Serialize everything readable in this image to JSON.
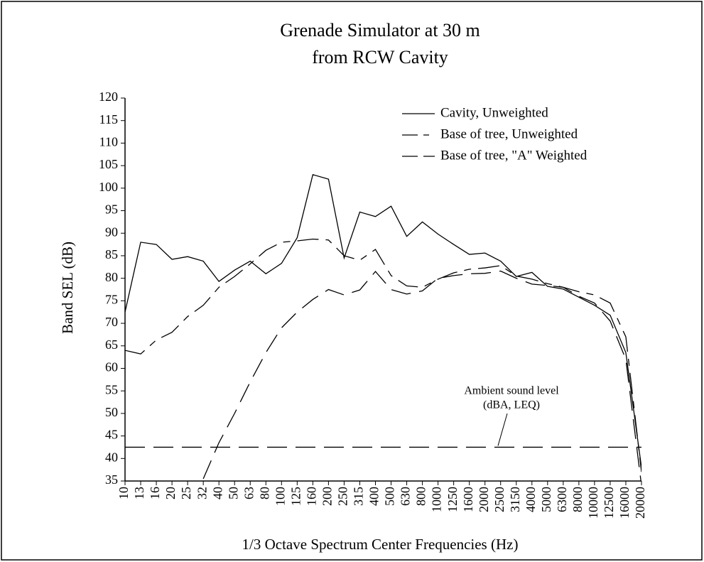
{
  "chart_data": {
    "type": "line",
    "title": [
      "Grenade Simulator at 30 m",
      "from RCW Cavity"
    ],
    "x_label": "1/3 Octave Spectrum Center Frequencies (Hz)",
    "y_label": "Band SEL (dB)",
    "categories": [
      "10",
      "13",
      "16",
      "20",
      "25",
      "32",
      "40",
      "50",
      "63",
      "80",
      "100",
      "125",
      "160",
      "200",
      "250",
      "315",
      "400",
      "500",
      "630",
      "800",
      "1000",
      "1250",
      "1600",
      "2000",
      "2500",
      "3150",
      "4000",
      "5000",
      "6300",
      "8000",
      "10000",
      "12500",
      "16000",
      "20000"
    ],
    "series": [
      {
        "name": "Cavity, Unweighted",
        "color": "#000000",
        "dash": "none",
        "values": [
          72.5,
          88,
          87.5,
          84.2,
          84.8,
          83.8,
          79.3,
          81.8,
          83.8,
          81,
          83.3,
          89,
          103,
          102,
          84.5,
          94.7,
          93.7,
          96,
          89.3,
          92.5,
          89.8,
          87.5,
          85.3,
          85.6,
          83.8,
          80.4,
          81.3,
          78.2,
          77.6,
          75.8,
          74,
          71.8,
          63.5,
          38
        ]
      },
      {
        "name": "Base of tree, Unweighted",
        "color": "#000000",
        "dash": "30 10 10 10",
        "values": [
          64,
          63.2,
          66.3,
          68,
          71.5,
          74,
          78,
          80.4,
          83.2,
          86.2,
          88,
          88.3,
          88.7,
          88.5,
          85,
          84,
          86.4,
          80.6,
          78.3,
          78,
          79.8,
          81.2,
          82,
          82.3,
          82.8,
          80.5,
          79.8,
          78.8,
          78,
          77,
          76.3,
          74.5,
          67,
          37
        ]
      },
      {
        "name": "Base of tree, \"A\" Weighted",
        "color": "#000000",
        "dash": "28 12",
        "values": [
          null,
          null,
          null,
          null,
          null,
          35.5,
          43.5,
          50,
          57,
          63.5,
          69,
          72.5,
          75.3,
          77.5,
          76.3,
          77.4,
          81.5,
          77.5,
          76.5,
          77.2,
          80,
          80.6,
          81,
          81.1,
          81.6,
          80,
          78.7,
          78.4,
          78,
          76,
          74.5,
          70.5,
          62,
          34
        ]
      }
    ],
    "annotation": {
      "text": [
        "Ambient sound level",
        "(dBA, LEQ)"
      ],
      "value": 42.5,
      "dash": "28 12",
      "color": "#000000"
    },
    "ylim": [
      35,
      120
    ],
    "yticks": [
      35,
      40,
      45,
      50,
      55,
      60,
      65,
      70,
      75,
      80,
      85,
      90,
      95,
      100,
      105,
      110,
      115,
      120
    ],
    "legend": "upper right",
    "grid": false
  }
}
